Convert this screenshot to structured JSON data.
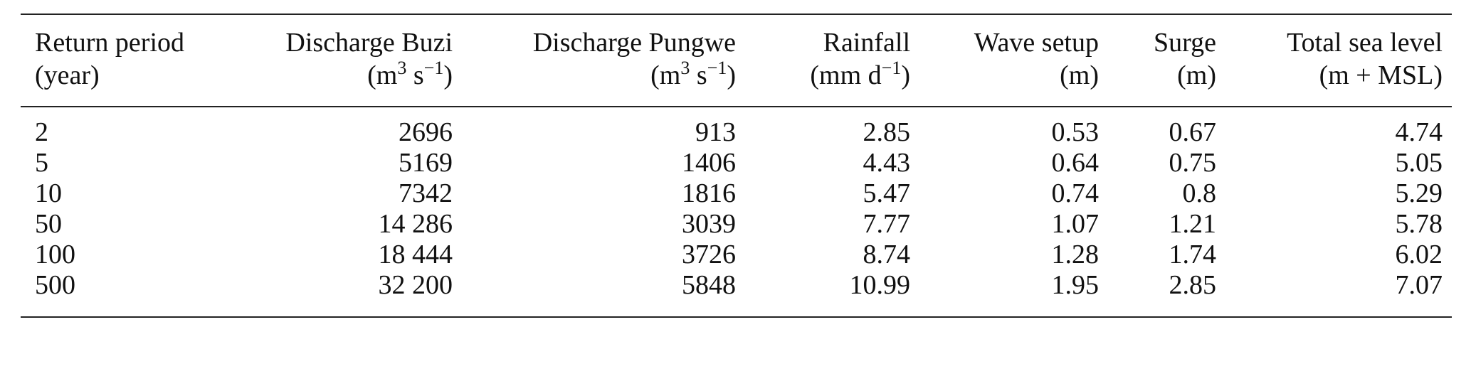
{
  "table": {
    "headers": [
      {
        "line1": "Return period",
        "line2": "(year)"
      },
      {
        "line1": "Discharge Buzi",
        "line2_pre": "(m",
        "sup1": "3",
        "mid": " s",
        "sup2": "−1",
        "post": ")"
      },
      {
        "line1": "Discharge Pungwe",
        "line2_pre": "(m",
        "sup1": "3",
        "mid": " s",
        "sup2": "−1",
        "post": ")"
      },
      {
        "line1": "Rainfall",
        "line2_pre": "(mm d",
        "sup2": "−1",
        "post": ")"
      },
      {
        "line1": "Wave setup",
        "line2": "(m)"
      },
      {
        "line1": "Surge",
        "line2": "(m)"
      },
      {
        "line1": "Total sea level",
        "line2": "(m + MSL)"
      }
    ],
    "rows": [
      [
        "2",
        "2696",
        "913",
        "2.85",
        "0.53",
        "0.67",
        "4.74"
      ],
      [
        "5",
        "5169",
        "1406",
        "4.43",
        "0.64",
        "0.75",
        "5.05"
      ],
      [
        "10",
        "7342",
        "1816",
        "5.47",
        "0.74",
        "0.8",
        "5.29"
      ],
      [
        "50",
        "14 286",
        "3039",
        "7.77",
        "1.07",
        "1.21",
        "5.78"
      ],
      [
        "100",
        "18 444",
        "3726",
        "8.74",
        "1.28",
        "1.74",
        "6.02"
      ],
      [
        "500",
        "32 200",
        "5848",
        "10.99",
        "1.95",
        "2.85",
        "7.07"
      ]
    ]
  }
}
